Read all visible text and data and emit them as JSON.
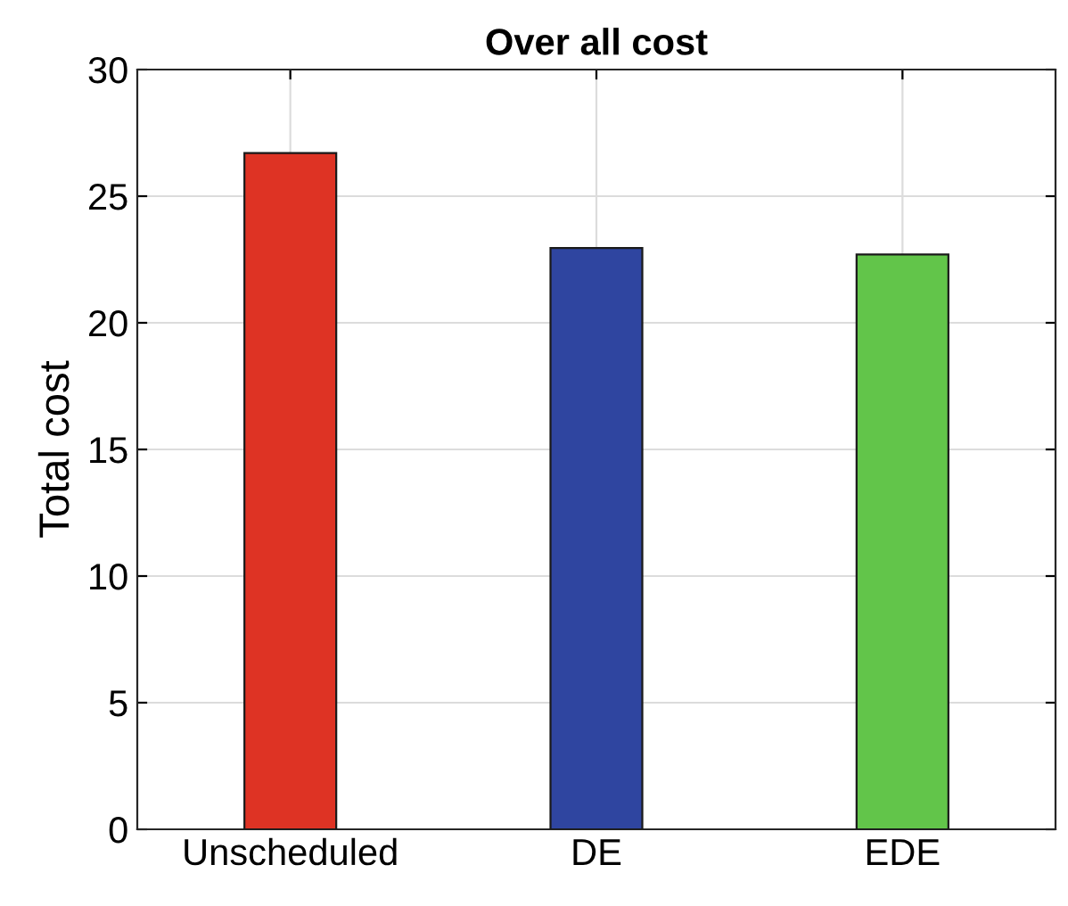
{
  "chart_data": {
    "type": "bar",
    "title": "Over all cost",
    "ylabel": "Total cost",
    "categories": [
      "Unscheduled",
      "DE",
      "EDE"
    ],
    "values": [
      26.7,
      22.95,
      22.7
    ],
    "colors": [
      "#de3324",
      "#2f45a0",
      "#62c54a"
    ],
    "ylim": [
      0,
      30
    ],
    "yticks": [
      0,
      5,
      10,
      15,
      20,
      25,
      30
    ],
    "grid": true
  }
}
